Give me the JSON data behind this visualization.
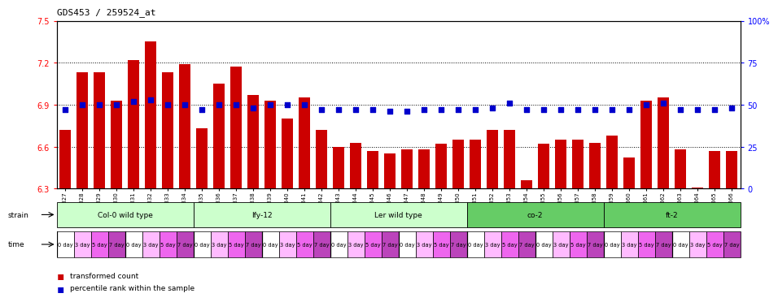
{
  "title": "GDS453 / 259524_at",
  "samples": [
    "GSM8827",
    "GSM8828",
    "GSM8829",
    "GSM8830",
    "GSM8831",
    "GSM8832",
    "GSM8833",
    "GSM8834",
    "GSM8835",
    "GSM8836",
    "GSM8837",
    "GSM8838",
    "GSM8839",
    "GSM8840",
    "GSM8841",
    "GSM8842",
    "GSM8843",
    "GSM8844",
    "GSM8845",
    "GSM8846",
    "GSM8847",
    "GSM8848",
    "GSM8849",
    "GSM8850",
    "GSM8851",
    "GSM8852",
    "GSM8853",
    "GSM8854",
    "GSM8855",
    "GSM8856",
    "GSM8857",
    "GSM8858",
    "GSM8859",
    "GSM8860",
    "GSM8861",
    "GSM8862",
    "GSM8863",
    "GSM8864",
    "GSM8865",
    "GSM8866"
  ],
  "bar_values": [
    6.72,
    7.13,
    7.13,
    6.93,
    7.22,
    7.35,
    7.13,
    7.19,
    6.73,
    7.05,
    7.17,
    6.97,
    6.93,
    6.8,
    6.95,
    6.72,
    6.6,
    6.63,
    6.57,
    6.55,
    6.58,
    6.58,
    6.62,
    6.65,
    6.65,
    6.72,
    6.72,
    6.36,
    6.62,
    6.65,
    6.65,
    6.63,
    6.68,
    6.52,
    6.93,
    6.95,
    6.58,
    6.31,
    6.57,
    6.57
  ],
  "percentile_values": [
    47,
    50,
    50,
    50,
    52,
    53,
    50,
    50,
    47,
    50,
    50,
    48,
    50,
    50,
    50,
    47,
    47,
    47,
    47,
    46,
    46,
    47,
    47,
    47,
    47,
    48,
    51,
    47,
    47,
    47,
    47,
    47,
    47,
    47,
    50,
    51,
    47,
    47,
    47,
    48
  ],
  "bar_color": "#cc0000",
  "dot_color": "#0000cc",
  "ylim": [
    6.3,
    7.5
  ],
  "yticks": [
    6.3,
    6.6,
    6.9,
    7.2,
    7.5
  ],
  "ytick_labels": [
    "6.3",
    "6.6",
    "6.9",
    "7.2",
    "7.5"
  ],
  "right_yticks": [
    0,
    25,
    50,
    75,
    100
  ],
  "right_ytick_labels": [
    "0",
    "25",
    "50",
    "75",
    "100%"
  ],
  "hlines": [
    6.6,
    6.9,
    7.2
  ],
  "strains": [
    {
      "label": "Col-0 wild type",
      "start": 0,
      "end": 8,
      "color": "#ccffcc"
    },
    {
      "label": "lfy-12",
      "start": 8,
      "end": 16,
      "color": "#ccffcc"
    },
    {
      "label": "Ler wild type",
      "start": 16,
      "end": 24,
      "color": "#ccffcc"
    },
    {
      "label": "co-2",
      "start": 24,
      "end": 32,
      "color": "#66cc66"
    },
    {
      "label": "ft-2",
      "start": 32,
      "end": 40,
      "color": "#66cc66"
    }
  ],
  "time_groups": [
    {
      "label": "0 day",
      "color": "#ffffff"
    },
    {
      "label": "3 day",
      "color": "#ffbbff"
    },
    {
      "label": "5 day",
      "color": "#ee66ee"
    },
    {
      "label": "7 day",
      "color": "#bb44bb"
    }
  ],
  "legend_bar_label": "transformed count",
  "legend_dot_label": "percentile rank within the sample",
  "background_color": "#ffffff"
}
